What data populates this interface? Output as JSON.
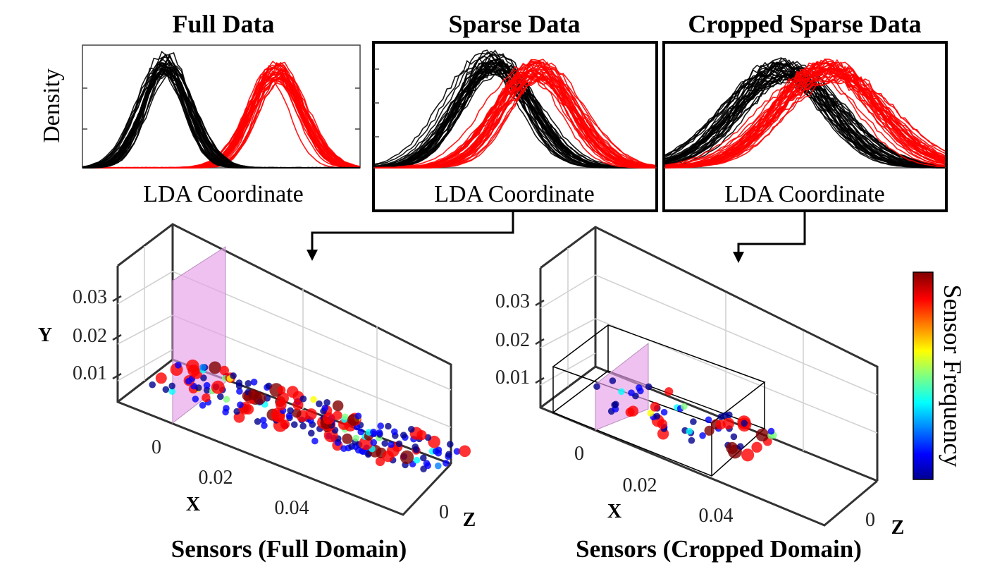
{
  "colors": {
    "class_a": "#000000",
    "class_b": "#ff0000",
    "highlight_plane": "#e6a0ea",
    "colormap": [
      "#00008f",
      "#0000ff",
      "#0080ff",
      "#00ffff",
      "#80ff80",
      "#ffff00",
      "#ff8000",
      "#ff0000",
      "#800000"
    ]
  },
  "chart_data": [
    {
      "id": "full",
      "type": "line",
      "title": "Full Data",
      "xlabel": "LDA Coordinate",
      "ylabel": "Density",
      "framed": false,
      "series": [
        {
          "class": "a",
          "center": 0.3,
          "width": 0.085,
          "height": 0.93,
          "curves": 32
        },
        {
          "class": "b",
          "center": 0.7,
          "width": 0.09,
          "height": 0.86,
          "curves": 32
        }
      ]
    },
    {
      "id": "sparse",
      "type": "line",
      "title": "Sparse Data",
      "xlabel": "LDA Coordinate",
      "ylabel": "",
      "framed": true,
      "series": [
        {
          "class": "a",
          "center": 0.43,
          "width": 0.13,
          "height": 0.93,
          "curves": 32
        },
        {
          "class": "b",
          "center": 0.57,
          "width": 0.13,
          "height": 0.86,
          "curves": 32
        }
      ]
    },
    {
      "id": "cropped",
      "type": "line",
      "title": "Cropped Sparse Data",
      "xlabel": "LDA Coordinate",
      "ylabel": "",
      "framed": true,
      "series": [
        {
          "class": "a",
          "center": 0.42,
          "width": 0.18,
          "height": 0.86,
          "curves": 32
        },
        {
          "class": "b",
          "center": 0.58,
          "width": 0.18,
          "height": 0.86,
          "curves": 32
        }
      ]
    },
    {
      "id": "sensors_full",
      "type": "scatter",
      "title": "Sensors (Full Domain)",
      "xlabel": "X",
      "ylabel": "Y",
      "zlabel": "Z",
      "x_ticks": [
        "0",
        "0.02",
        "0.04"
      ],
      "y_ticks": [
        "0.01",
        "0.02",
        "0.03"
      ],
      "z_ticks": [
        "0"
      ],
      "x_range": [
        -0.01,
        0.06
      ],
      "plane_x": 0.0,
      "point_count": 210,
      "crop_box": null
    },
    {
      "id": "sensors_cropped",
      "type": "scatter",
      "title": "Sensors (Cropped Domain)",
      "xlabel": "X",
      "ylabel": "",
      "zlabel": "Z",
      "x_ticks": [
        "0",
        "0.02",
        "0.04"
      ],
      "y_ticks": [
        "0.01",
        "0.02",
        "0.03"
      ],
      "z_ticks": [
        "0"
      ],
      "x_range": [
        -0.01,
        0.06
      ],
      "plane_x": 0.0,
      "point_count": 60,
      "crop_box": {
        "x0": -0.01,
        "x1": 0.03
      }
    }
  ],
  "colorbar": {
    "label": "Sensor Frequency"
  }
}
